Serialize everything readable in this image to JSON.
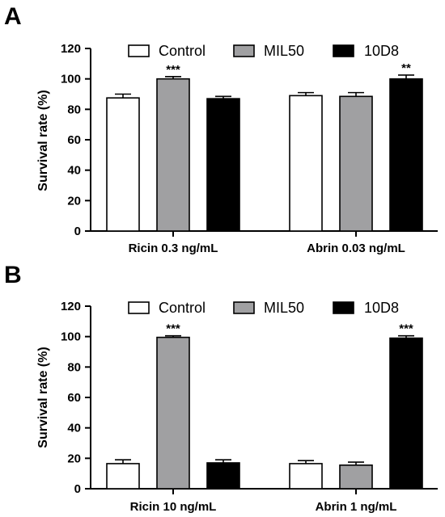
{
  "chart_data": [
    {
      "panel": "A",
      "type": "bar",
      "categories": [
        "Ricin 0.3 ng/mL",
        "Abrin 0.03 ng/mL"
      ],
      "ylabel": "Survival rate (%)",
      "ylim": [
        0,
        120
      ],
      "yticks": [
        "0",
        "20",
        "40",
        "60",
        "80",
        "100",
        "120"
      ],
      "grid": false,
      "legend_position": "top",
      "series": [
        {
          "name": "Control",
          "color": "#ffffff",
          "values": [
            87.5,
            89
          ],
          "errors": [
            2.5,
            2
          ]
        },
        {
          "name": "MIL50",
          "color": "#a0a0a2",
          "values": [
            100,
            88.5
          ],
          "errors": [
            1.5,
            2.5
          ]
        },
        {
          "name": "10D8",
          "color": "#000000",
          "values": [
            87,
            100
          ],
          "errors": [
            1.5,
            2.5
          ]
        }
      ],
      "annotations": [
        {
          "category": 0,
          "series": 1,
          "text": "***"
        },
        {
          "category": 1,
          "series": 2,
          "text": "**"
        }
      ]
    },
    {
      "panel": "B",
      "type": "bar",
      "categories": [
        "Ricin 10 ng/mL",
        "Abrin 1 ng/mL"
      ],
      "ylabel": "Survival rate (%)",
      "ylim": [
        0,
        120
      ],
      "yticks": [
        "0",
        "20",
        "40",
        "60",
        "80",
        "100",
        "120"
      ],
      "grid": false,
      "legend_position": "top",
      "series": [
        {
          "name": "Control",
          "color": "#ffffff",
          "values": [
            16.5,
            16.5
          ],
          "errors": [
            2.5,
            2
          ]
        },
        {
          "name": "MIL50",
          "color": "#a0a0a2",
          "values": [
            99.5,
            15.5
          ],
          "errors": [
            1,
            2
          ]
        },
        {
          "name": "10D8",
          "color": "#000000",
          "values": [
            17,
            99
          ],
          "errors": [
            2,
            1.5
          ]
        }
      ],
      "annotations": [
        {
          "category": 0,
          "series": 1,
          "text": "***"
        },
        {
          "category": 1,
          "series": 2,
          "text": "***"
        }
      ]
    }
  ]
}
